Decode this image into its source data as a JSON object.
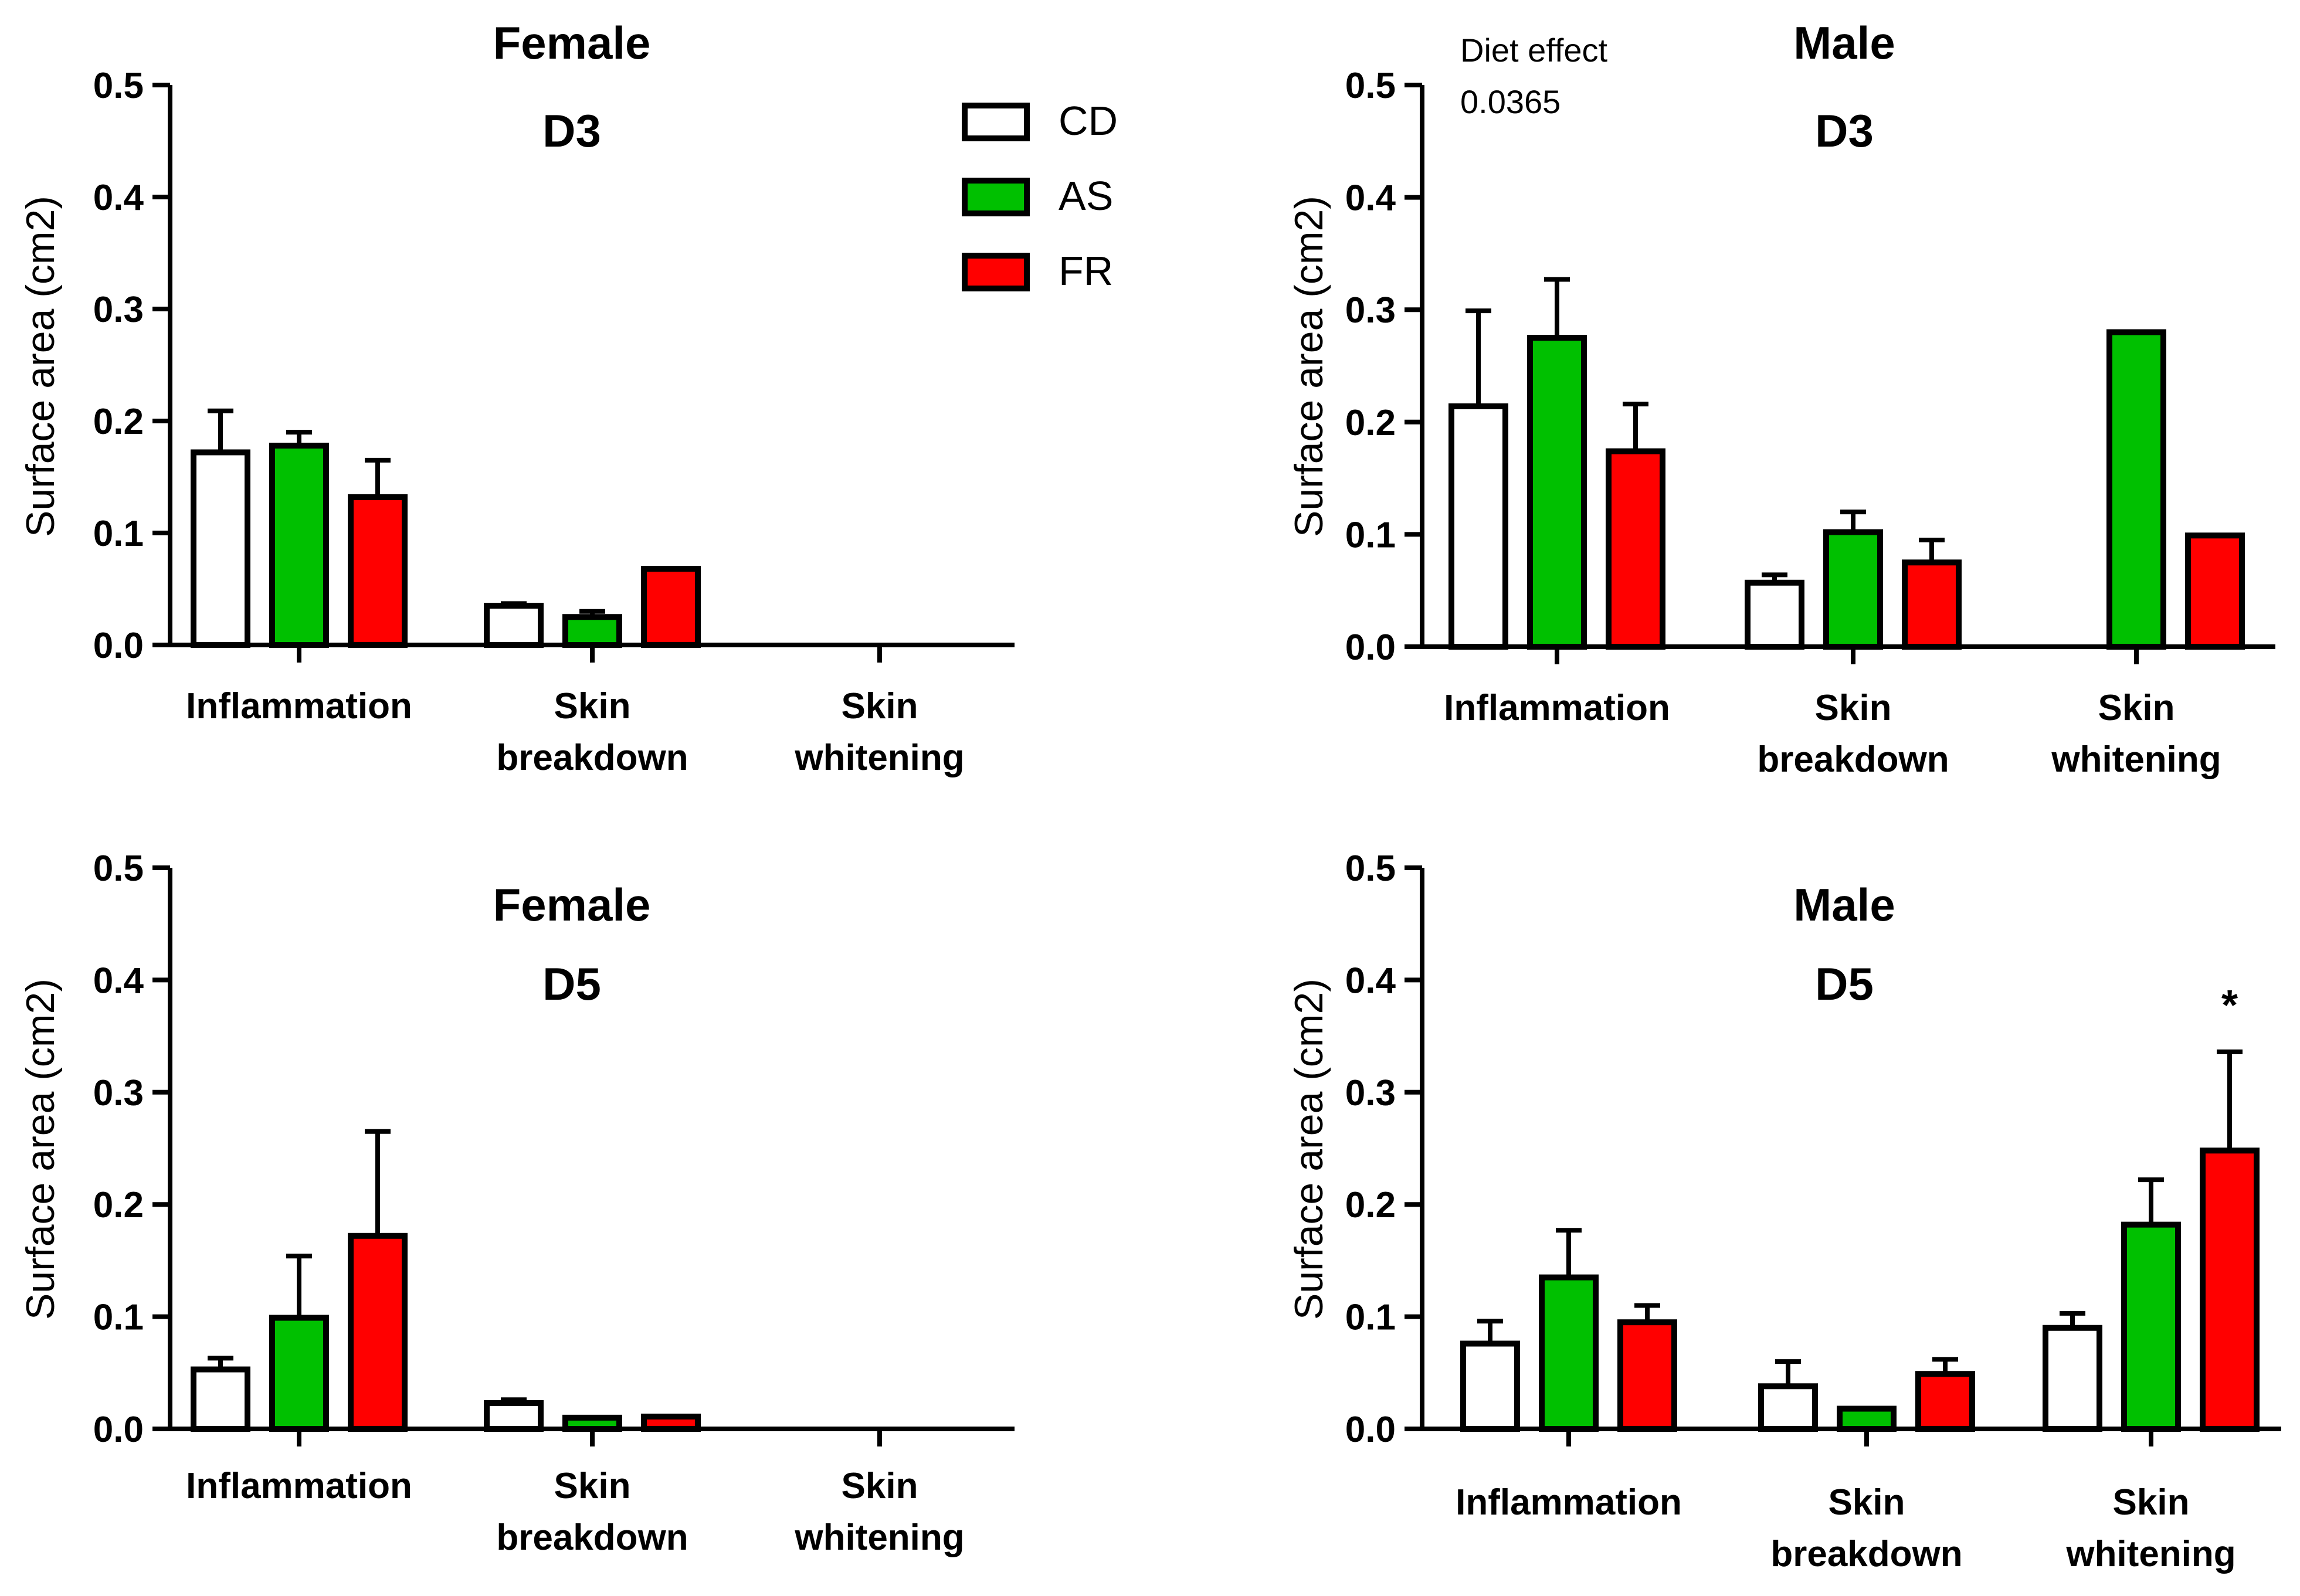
{
  "legend": [
    {
      "name": "CD",
      "color": "#ffffff"
    },
    {
      "name": "AS",
      "color": "#00c000"
    },
    {
      "name": "FR",
      "color": "#ff0000"
    }
  ],
  "chart_data": [
    {
      "type": "bar",
      "title": "Female",
      "subtitle": "D3",
      "ylabel": "Surface area (cm2)",
      "ylim": [
        0,
        0.5
      ],
      "yticks": [
        "0.0",
        "0.1",
        "0.2",
        "0.3",
        "0.4",
        "0.5"
      ],
      "categories": [
        [
          "Inflammation"
        ],
        [
          "Skin",
          "breakdown"
        ],
        [
          "Skin",
          "whitening"
        ]
      ],
      "series": [
        {
          "name": "CD",
          "values": [
            0.172,
            0.035,
            0.0
          ],
          "errors": [
            0.037,
            0.002,
            0.0
          ]
        },
        {
          "name": "AS",
          "values": [
            0.178,
            0.025,
            0.0
          ],
          "errors": [
            0.012,
            0.005,
            0.0
          ]
        },
        {
          "name": "FR",
          "values": [
            0.132,
            0.068,
            0.0
          ],
          "errors": [
            0.033,
            0.0,
            0.0
          ]
        }
      ]
    },
    {
      "type": "bar",
      "title": "Male",
      "subtitle": "D3",
      "ylabel": "Surface area (cm2)",
      "ylim": [
        0,
        0.5
      ],
      "yticks": [
        "0.0",
        "0.1",
        "0.2",
        "0.3",
        "0.4",
        "0.5"
      ],
      "categories": [
        [
          "Inflammation"
        ],
        [
          "Skin",
          "breakdown"
        ],
        [
          "Skin",
          "whitening"
        ]
      ],
      "annotation": [
        "Diet effect",
        "0.0365"
      ],
      "series": [
        {
          "name": "CD",
          "values": [
            0.214,
            0.057,
            0.0
          ],
          "errors": [
            0.085,
            0.007,
            0.0
          ]
        },
        {
          "name": "AS",
          "values": [
            0.275,
            0.102,
            0.28
          ],
          "errors": [
            0.052,
            0.018,
            0.0
          ]
        },
        {
          "name": "FR",
          "values": [
            0.174,
            0.075,
            0.099
          ],
          "errors": [
            0.042,
            0.02,
            0.0
          ]
        }
      ]
    },
    {
      "type": "bar",
      "title": "Female",
      "subtitle": "D5",
      "ylabel": "Surface area (cm2)",
      "ylim": [
        0,
        0.5
      ],
      "yticks": [
        "0.0",
        "0.1",
        "0.2",
        "0.3",
        "0.4",
        "0.5"
      ],
      "categories": [
        [
          "Inflammation"
        ],
        [
          "Skin",
          "breakdown"
        ],
        [
          "Skin",
          "whitening"
        ]
      ],
      "series": [
        {
          "name": "CD",
          "values": [
            0.053,
            0.023,
            0.0
          ],
          "errors": [
            0.01,
            0.003,
            0.0
          ]
        },
        {
          "name": "AS",
          "values": [
            0.099,
            0.01,
            0.0
          ],
          "errors": [
            0.055,
            0.0,
            0.0
          ]
        },
        {
          "name": "FR",
          "values": [
            0.172,
            0.011,
            0.0
          ],
          "errors": [
            0.093,
            0.0,
            0.0
          ]
        }
      ]
    },
    {
      "type": "bar",
      "title": "Male",
      "subtitle": "D5",
      "ylabel": "Surface area (cm2)",
      "ylim": [
        0,
        0.5
      ],
      "yticks": [
        "0.0",
        "0.1",
        "0.2",
        "0.3",
        "0.4",
        "0.5"
      ],
      "categories": [
        [
          "Inflammation"
        ],
        [
          "Skin",
          "breakdown"
        ],
        [
          "Skin",
          "whitening"
        ]
      ],
      "significance": {
        "category": 2,
        "series": 2,
        "label": "*"
      },
      "series": [
        {
          "name": "CD",
          "values": [
            0.076,
            0.038,
            0.09
          ],
          "errors": [
            0.02,
            0.022,
            0.013
          ]
        },
        {
          "name": "AS",
          "values": [
            0.135,
            0.018,
            0.182
          ],
          "errors": [
            0.042,
            0.0,
            0.04
          ]
        },
        {
          "name": "FR",
          "values": [
            0.095,
            0.049,
            0.248
          ],
          "errors": [
            0.015,
            0.013,
            0.088
          ]
        }
      ]
    }
  ]
}
